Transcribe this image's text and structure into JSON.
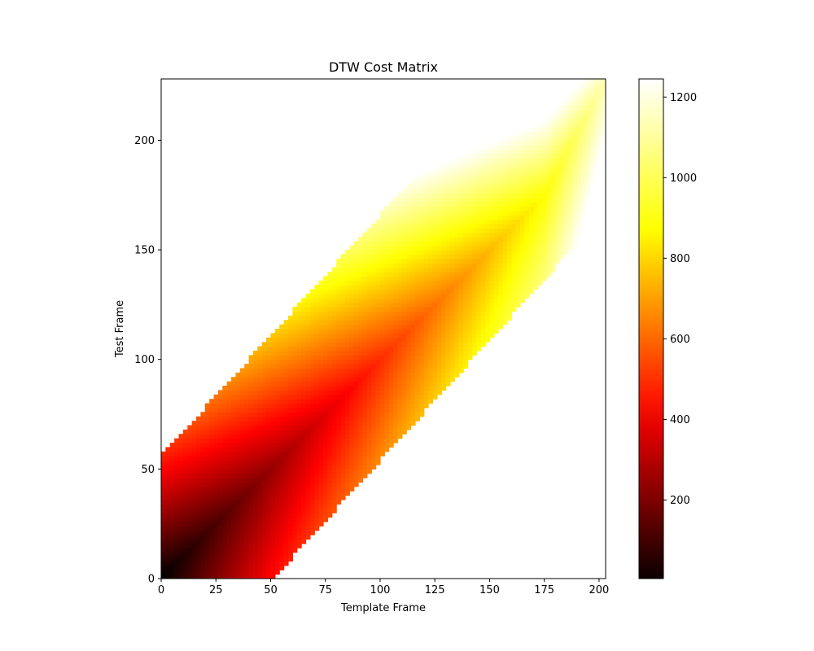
{
  "chart_data": {
    "type": "heatmap",
    "title": "DTW Cost Matrix",
    "xlabel": "Template Frame",
    "ylabel": "Test Frame",
    "xlim": [
      0,
      203
    ],
    "ylim": [
      0,
      228
    ],
    "x_ticks": [
      0,
      25,
      50,
      75,
      100,
      125,
      150,
      175,
      200
    ],
    "y_ticks": [
      0,
      50,
      100,
      150,
      200
    ],
    "colormap": "hot",
    "colorbar": {
      "range": [
        5,
        1245
      ],
      "ticks": [
        200,
        400,
        600,
        800,
        1000,
        1200
      ]
    },
    "band": {
      "description": "Sakoe-Chiba style band; cells outside are blank (white)",
      "lower_offset": -56,
      "upper_offset": 56,
      "slope": 1.1
    },
    "valley_path": {
      "x": [
        0,
        25,
        50,
        75,
        100,
        125,
        150,
        175,
        203
      ],
      "y": [
        0,
        25,
        50,
        75,
        100,
        125,
        150,
        175,
        228
      ]
    },
    "sample_values": [
      {
        "x": 5,
        "y": 3,
        "value": 20
      },
      {
        "x": 40,
        "y": 40,
        "value": 120
      },
      {
        "x": 75,
        "y": 75,
        "value": 240
      },
      {
        "x": 100,
        "y": 100,
        "value": 500
      },
      {
        "x": 125,
        "y": 125,
        "value": 750
      },
      {
        "x": 150,
        "y": 150,
        "value": 950
      },
      {
        "x": 175,
        "y": 175,
        "value": 1050
      },
      {
        "x": 200,
        "y": 225,
        "value": 1245
      },
      {
        "x": 55,
        "y": 2,
        "value": 450
      },
      {
        "x": 0,
        "y": 55,
        "value": 380
      }
    ],
    "grid": false,
    "legend": "colorbar-right"
  }
}
